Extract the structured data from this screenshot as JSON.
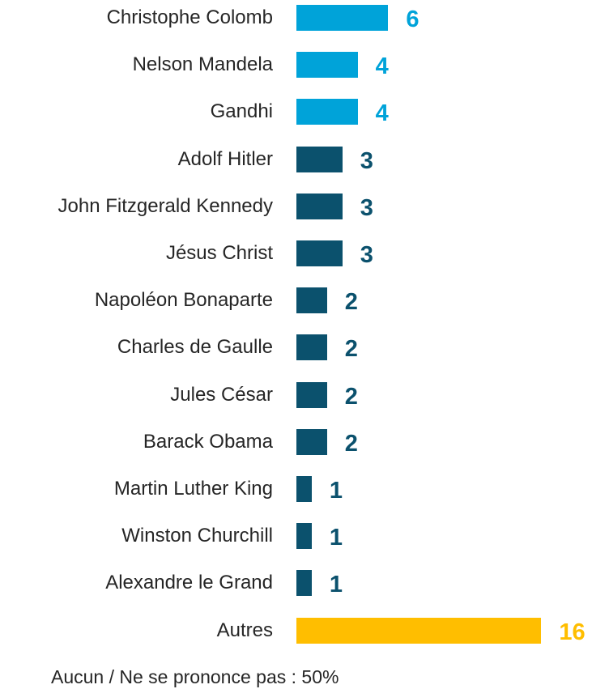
{
  "chart_data": {
    "type": "bar",
    "orientation": "horizontal",
    "categories": [
      "Christophe Colomb",
      "Nelson Mandela",
      "Gandhi",
      "Adolf Hitler",
      "John Fitzgerald Kennedy",
      "Jésus Christ",
      "Napoléon Bonaparte",
      "Charles de Gaulle",
      "Jules César",
      "Barack Obama",
      "Martin Luther King",
      "Winston Churchill",
      "Alexandre le Grand",
      "Autres"
    ],
    "values": [
      6,
      4,
      4,
      3,
      3,
      3,
      2,
      2,
      2,
      2,
      1,
      1,
      1,
      16
    ],
    "colors": [
      "#00a3d9",
      "#00a3d9",
      "#00a3d9",
      "#0b516d",
      "#0b516d",
      "#0b516d",
      "#0b516d",
      "#0b516d",
      "#0b516d",
      "#0b516d",
      "#0b516d",
      "#0b516d",
      "#0b516d",
      "#ffbe00"
    ],
    "xlim": [
      0,
      16
    ],
    "grid": false,
    "data_labels": true
  },
  "footnote": "Aucun / Ne se prononce pas : 50%"
}
